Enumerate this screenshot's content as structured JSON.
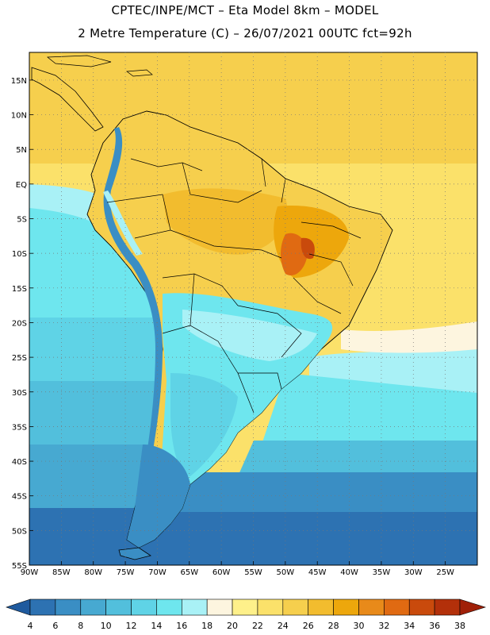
{
  "header": {
    "line1": "CPTEC/INPE/MCT –  Eta Model 8km – MODEL",
    "line2": "2 Metre Temperature (C) – 26/07/2021 00UTC fct=92h"
  },
  "map": {
    "lat_labels": [
      "15N",
      "10N",
      "5N",
      "EQ",
      "5S",
      "10S",
      "15S",
      "20S",
      "25S",
      "30S",
      "35S",
      "40S",
      "45S",
      "50S",
      "55S"
    ],
    "lon_labels": [
      "90W",
      "85W",
      "80W",
      "75W",
      "70W",
      "65W",
      "60W",
      "55W",
      "50W",
      "45W",
      "40W",
      "35W",
      "30W",
      "25W"
    ],
    "extent": {
      "lon_min": -90,
      "lon_max": -20,
      "lat_min": -55,
      "lat_max": 19
    }
  },
  "colorbar": {
    "ticks": [
      "4",
      "6",
      "8",
      "10",
      "12",
      "14",
      "16",
      "18",
      "20",
      "22",
      "24",
      "26",
      "28",
      "30",
      "32",
      "34",
      "36",
      "38"
    ],
    "colors": [
      "#1f5a9e",
      "#2d72b2",
      "#3a8ec4",
      "#47a9d1",
      "#52bfdc",
      "#5fd3e6",
      "#6ee6ee",
      "#a9f1f6",
      "#fdf5df",
      "#fef08a",
      "#fbe16a",
      "#f6cf4d",
      "#f2bc2e",
      "#eda70c",
      "#e88a1a",
      "#e06a12",
      "#c94a0c",
      "#b3300a",
      "#a02008"
    ]
  }
}
